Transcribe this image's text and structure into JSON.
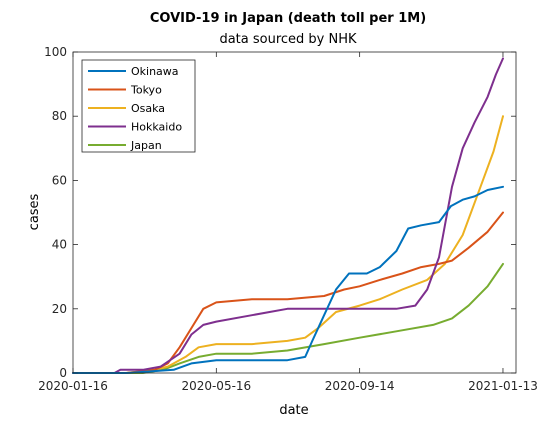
{
  "chart_data": {
    "type": "line",
    "title": "COVID-19 in Japan (death toll per 1M)",
    "subtitle": "data sourced by NHK",
    "xlabel": "date",
    "ylabel": "cases",
    "xlim": [
      "2020-01-16",
      "2021-01-24"
    ],
    "ylim": [
      0,
      100
    ],
    "xticks": [
      "2020-01-16",
      "2020-05-16",
      "2020-09-14",
      "2021-01-13"
    ],
    "yticks": [
      0,
      20,
      40,
      60,
      80,
      100
    ],
    "grid": false,
    "legend_position": "top-left",
    "series": [
      {
        "name": "Okinawa",
        "color": "#0072BD",
        "points": [
          [
            "2020-01-16",
            0
          ],
          [
            "2020-03-01",
            0
          ],
          [
            "2020-04-10",
            1
          ],
          [
            "2020-04-25",
            3
          ],
          [
            "2020-05-16",
            4
          ],
          [
            "2020-06-15",
            4
          ],
          [
            "2020-07-15",
            4
          ],
          [
            "2020-07-30",
            5
          ],
          [
            "2020-08-05",
            10
          ],
          [
            "2020-08-15",
            18
          ],
          [
            "2020-08-25",
            26
          ],
          [
            "2020-09-05",
            31
          ],
          [
            "2020-09-20",
            31
          ],
          [
            "2020-10-01",
            33
          ],
          [
            "2020-10-15",
            38
          ],
          [
            "2020-10-25",
            45
          ],
          [
            "2020-11-05",
            46
          ],
          [
            "2020-11-20",
            47
          ],
          [
            "2020-11-30",
            52
          ],
          [
            "2020-12-10",
            54
          ],
          [
            "2020-12-20",
            55
          ],
          [
            "2020-12-31",
            57
          ],
          [
            "2021-01-13",
            58
          ]
        ]
      },
      {
        "name": "Tokyo",
        "color": "#D95319",
        "points": [
          [
            "2020-01-16",
            0
          ],
          [
            "2020-03-01",
            0
          ],
          [
            "2020-03-25",
            1
          ],
          [
            "2020-04-05",
            3
          ],
          [
            "2020-04-15",
            8
          ],
          [
            "2020-04-25",
            14
          ],
          [
            "2020-05-05",
            20
          ],
          [
            "2020-05-16",
            22
          ],
          [
            "2020-06-15",
            23
          ],
          [
            "2020-07-15",
            23
          ],
          [
            "2020-08-15",
            24
          ],
          [
            "2020-09-01",
            26
          ],
          [
            "2020-09-14",
            27
          ],
          [
            "2020-10-01",
            29
          ],
          [
            "2020-10-20",
            31
          ],
          [
            "2020-11-05",
            33
          ],
          [
            "2020-11-20",
            34
          ],
          [
            "2020-12-01",
            35
          ],
          [
            "2020-12-15",
            39
          ],
          [
            "2020-12-31",
            44
          ],
          [
            "2021-01-13",
            50
          ]
        ]
      },
      {
        "name": "Osaka",
        "color": "#EDB120",
        "points": [
          [
            "2020-01-16",
            0
          ],
          [
            "2020-03-01",
            0
          ],
          [
            "2020-03-25",
            1
          ],
          [
            "2020-04-05",
            2
          ],
          [
            "2020-04-20",
            5
          ],
          [
            "2020-05-01",
            8
          ],
          [
            "2020-05-16",
            9
          ],
          [
            "2020-06-15",
            9
          ],
          [
            "2020-07-15",
            10
          ],
          [
            "2020-07-30",
            11
          ],
          [
            "2020-08-10",
            14
          ],
          [
            "2020-08-25",
            19
          ],
          [
            "2020-09-14",
            21
          ],
          [
            "2020-10-01",
            23
          ],
          [
            "2020-10-20",
            26
          ],
          [
            "2020-11-10",
            29
          ],
          [
            "2020-11-25",
            34
          ],
          [
            "2020-12-10",
            43
          ],
          [
            "2020-12-25",
            58
          ],
          [
            "2021-01-05",
            69
          ],
          [
            "2021-01-13",
            80
          ]
        ]
      },
      {
        "name": "Hokkaido",
        "color": "#7E2F8E",
        "points": [
          [
            "2020-01-16",
            0
          ],
          [
            "2020-02-20",
            0
          ],
          [
            "2020-02-25",
            1
          ],
          [
            "2020-03-15",
            1
          ],
          [
            "2020-03-30",
            2
          ],
          [
            "2020-04-15",
            6
          ],
          [
            "2020-04-25",
            12
          ],
          [
            "2020-05-05",
            15
          ],
          [
            "2020-05-16",
            16
          ],
          [
            "2020-06-15",
            18
          ],
          [
            "2020-06-30",
            19
          ],
          [
            "2020-07-15",
            20
          ],
          [
            "2020-08-15",
            20
          ],
          [
            "2020-09-14",
            20
          ],
          [
            "2020-10-15",
            20
          ],
          [
            "2020-10-31",
            21
          ],
          [
            "2020-11-10",
            26
          ],
          [
            "2020-11-20",
            36
          ],
          [
            "2020-11-25",
            46
          ],
          [
            "2020-12-01",
            58
          ],
          [
            "2020-12-10",
            70
          ],
          [
            "2020-12-20",
            78
          ],
          [
            "2020-12-31",
            86
          ],
          [
            "2021-01-07",
            93
          ],
          [
            "2021-01-13",
            98
          ]
        ]
      },
      {
        "name": "Japan",
        "color": "#77AC30",
        "points": [
          [
            "2020-01-16",
            0
          ],
          [
            "2020-03-15",
            0
          ],
          [
            "2020-04-01",
            1
          ],
          [
            "2020-04-15",
            3
          ],
          [
            "2020-05-01",
            5
          ],
          [
            "2020-05-16",
            6
          ],
          [
            "2020-06-15",
            6
          ],
          [
            "2020-07-15",
            7
          ],
          [
            "2020-08-15",
            9
          ],
          [
            "2020-09-14",
            11
          ],
          [
            "2020-10-15",
            13
          ],
          [
            "2020-11-15",
            15
          ],
          [
            "2020-12-01",
            17
          ],
          [
            "2020-12-15",
            21
          ],
          [
            "2020-12-31",
            27
          ],
          [
            "2021-01-13",
            34
          ]
        ]
      }
    ]
  }
}
